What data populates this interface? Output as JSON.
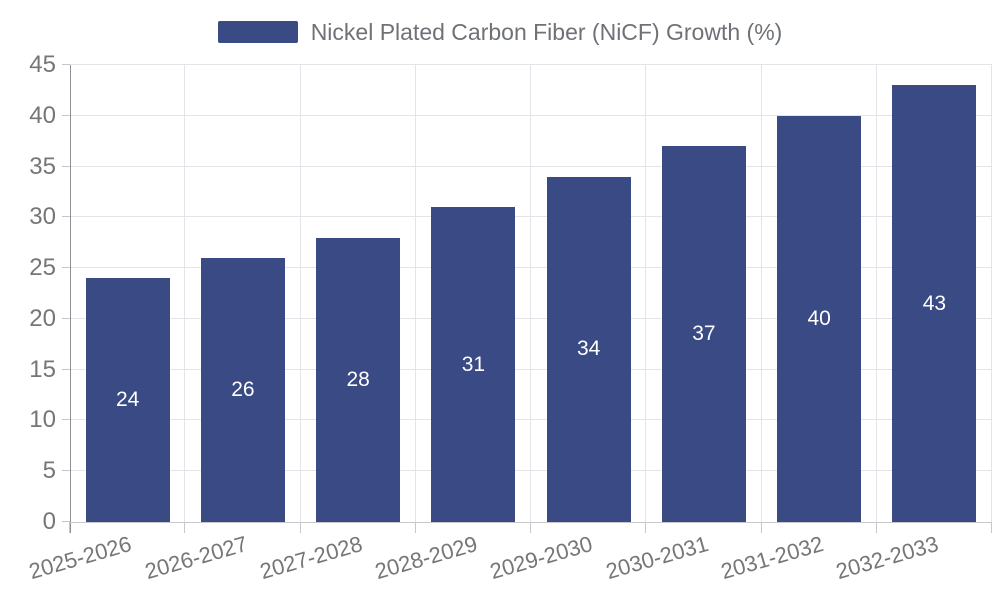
{
  "chart_data": {
    "type": "bar",
    "title": "",
    "legend_entries": [
      "Nickel Plated Carbon Fiber (NiCF) Growth (%)"
    ],
    "legend_position": "top-center",
    "categories": [
      "2025-2026",
      "2026-2027",
      "2027-2028",
      "2028-2029",
      "2029-2030",
      "2030-2031",
      "2031-2032",
      "2032-2033"
    ],
    "values": [
      24,
      26,
      28,
      31,
      34,
      37,
      40,
      43
    ],
    "xlabel": "",
    "ylabel": "",
    "ylim": [
      0,
      45
    ],
    "ytick_step": 5,
    "yticks": [
      0,
      5,
      10,
      15,
      20,
      25,
      30,
      35,
      40,
      45
    ],
    "grid": true,
    "bar_color": "#394a84",
    "value_label_color": "#ffffff",
    "axis_text_color": "#767676",
    "x_label_rotation_deg": -16
  }
}
